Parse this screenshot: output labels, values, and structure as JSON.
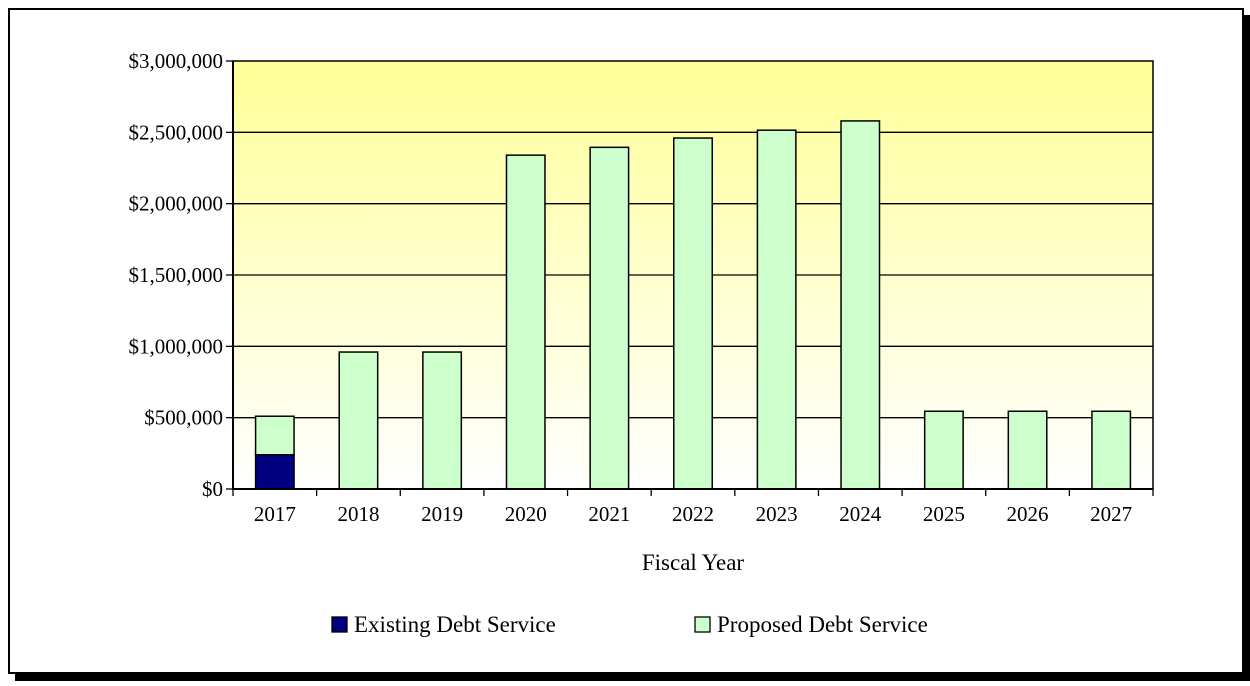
{
  "chart_data": {
    "type": "bar",
    "stacked": true,
    "categories": [
      "2017",
      "2018",
      "2019",
      "2020",
      "2021",
      "2022",
      "2023",
      "2024",
      "2025",
      "2026",
      "2027"
    ],
    "series": [
      {
        "name": "Existing Debt Service",
        "color": "#000080",
        "values": [
          240000,
          0,
          0,
          0,
          0,
          0,
          0,
          0,
          0,
          0,
          0
        ]
      },
      {
        "name": "Proposed Debt Service",
        "color": "#ccffcc",
        "values": [
          270000,
          960000,
          960000,
          2340000,
          2395000,
          2460000,
          2515000,
          2580000,
          545000,
          545000,
          545000
        ]
      }
    ],
    "title": "",
    "xlabel": "Fiscal Year",
    "ylabel": "",
    "ylim": [
      0,
      3000000
    ],
    "yticks": [
      0,
      500000,
      1000000,
      1500000,
      2000000,
      2500000,
      3000000
    ],
    "ytick_labels": [
      "$0",
      "$500,000",
      "$1,000,000",
      "$1,500,000",
      "$2,000,000",
      "$2,500,000",
      "$3,000,000"
    ],
    "grid": true,
    "legend_position": "bottom",
    "plot_background": {
      "top": "#ffff99",
      "bottom": "#ffffff"
    }
  }
}
